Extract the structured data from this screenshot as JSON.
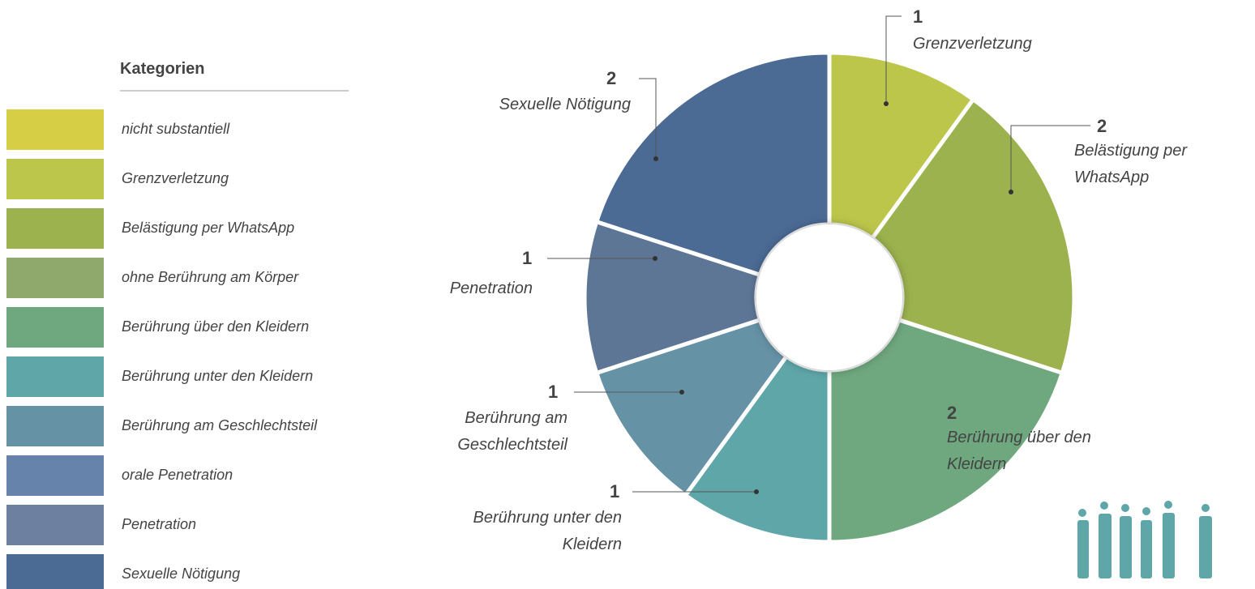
{
  "chart_data": {
    "type": "donut",
    "legend_title": "Kategorien",
    "categories": [
      "nicht substantiell",
      "Grenzverletzung",
      "Belästigung per WhatsApp",
      "ohne Berührung am Körper",
      "Berührung über den Kleidern",
      "Berührung unter den Kleidern",
      "Berührung am Geschlechtsteil",
      "orale Penetration",
      "Penetration",
      "Sexuelle Nötigung"
    ],
    "values": [
      0,
      1,
      2,
      0,
      2,
      1,
      1,
      0,
      1,
      2
    ],
    "colors": [
      "#d6cf45",
      "#bcc64a",
      "#9bb24e",
      "#8fa86b",
      "#6fa77e",
      "#5fa6a9",
      "#6692a6",
      "#6683ac",
      "#6e80a0",
      "#4b6a94"
    ],
    "slice_colors": [
      "#d6cf45",
      "#bcc64a",
      "#9bb24e",
      "#8fa86b",
      "#6fa77e",
      "#5fa6a9",
      "#6692a6",
      "#6683ac",
      "#5e7696",
      "#4b6a94"
    ]
  }
}
